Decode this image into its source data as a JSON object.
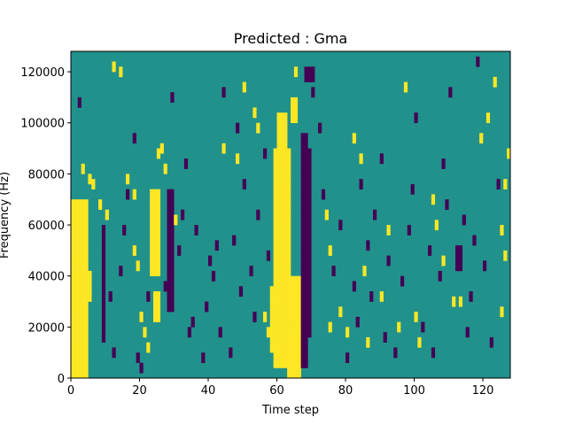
{
  "chart_data": {
    "type": "heatmap",
    "title": "Predicted : Gma",
    "xlabel": "Time step",
    "ylabel": "Frequency (Hz)",
    "xlim": [
      0,
      128
    ],
    "ylim": [
      0,
      128000
    ],
    "x_ticks": [
      0,
      20,
      40,
      60,
      80,
      100,
      120
    ],
    "x_tick_labels": [
      "0",
      "20",
      "40",
      "60",
      "80",
      "100",
      "120"
    ],
    "y_ticks": [
      0,
      20000,
      40000,
      60000,
      80000,
      100000,
      120000
    ],
    "y_tick_labels": [
      "0",
      "20000",
      "40000",
      "60000",
      "80000",
      "100000",
      "120000"
    ],
    "n_time_steps": 128,
    "n_freq_bins": 64,
    "colormap": "viridis",
    "levels": {
      "low": "#440154",
      "mid": "#21918c",
      "high": "#fde725"
    },
    "background_level": "mid",
    "high_regions": [
      {
        "t": [
          0,
          5
        ],
        "f": [
          0,
          70000
        ]
      },
      {
        "t": [
          1,
          4
        ],
        "f": [
          20000,
          50000
        ]
      },
      {
        "t": [
          3,
          6
        ],
        "f": [
          30000,
          42000
        ]
      },
      {
        "t": [
          23,
          26
        ],
        "f": [
          40000,
          74000
        ]
      },
      {
        "t": [
          24,
          26
        ],
        "f": [
          22000,
          34000
        ]
      },
      {
        "t": [
          59,
          64
        ],
        "f": [
          4000,
          90000
        ]
      },
      {
        "t": [
          58,
          65
        ],
        "f": [
          10000,
          36000
        ]
      },
      {
        "t": [
          60,
          63
        ],
        "f": [
          86000,
          104000
        ]
      },
      {
        "t": [
          63,
          67
        ],
        "f": [
          0,
          40000
        ]
      },
      {
        "t": [
          64,
          66
        ],
        "f": [
          100000,
          110000
        ]
      }
    ],
    "low_regions": [
      {
        "t": [
          28,
          30
        ],
        "f": [
          26000,
          74000
        ]
      },
      {
        "t": [
          67,
          69
        ],
        "f": [
          4000,
          96000
        ]
      },
      {
        "t": [
          68,
          70
        ],
        "f": [
          16000,
          90000
        ]
      },
      {
        "t": [
          68,
          71
        ],
        "f": [
          116000,
          122000
        ]
      },
      {
        "t": [
          112,
          114
        ],
        "f": [
          42000,
          52000
        ]
      },
      {
        "t": [
          9,
          10
        ],
        "f": [
          14000,
          60000
        ]
      },
      {
        "t": [
          69,
          70
        ],
        "f": [
          60000,
          80000
        ]
      }
    ],
    "high_points": [
      [
        3,
        80000
      ],
      [
        5,
        76000
      ],
      [
        6,
        74000
      ],
      [
        8,
        66000
      ],
      [
        10,
        62000
      ],
      [
        12,
        120000
      ],
      [
        14,
        118000
      ],
      [
        16,
        76000
      ],
      [
        18,
        70000
      ],
      [
        18,
        48000
      ],
      [
        19,
        42000
      ],
      [
        20,
        22000
      ],
      [
        21,
        16000
      ],
      [
        22,
        10000
      ],
      [
        25,
        86000
      ],
      [
        26,
        88000
      ],
      [
        27,
        80000
      ],
      [
        30,
        60000
      ],
      [
        44,
        88000
      ],
      [
        48,
        84000
      ],
      [
        50,
        112000
      ],
      [
        53,
        102000
      ],
      [
        54,
        96000
      ],
      [
        56,
        22000
      ],
      [
        57,
        16000
      ],
      [
        65,
        118000
      ],
      [
        74,
        62000
      ],
      [
        75,
        48000
      ],
      [
        75,
        18000
      ],
      [
        78,
        24000
      ],
      [
        80,
        16000
      ],
      [
        82,
        92000
      ],
      [
        84,
        84000
      ],
      [
        85,
        40000
      ],
      [
        86,
        12000
      ],
      [
        90,
        30000
      ],
      [
        92,
        56000
      ],
      [
        95,
        18000
      ],
      [
        97,
        112000
      ],
      [
        100,
        22000
      ],
      [
        105,
        68000
      ],
      [
        106,
        58000
      ],
      [
        108,
        44000
      ],
      [
        111,
        28000
      ],
      [
        113,
        28000
      ],
      [
        119,
        92000
      ],
      [
        121,
        100000
      ],
      [
        123,
        114000
      ],
      [
        125,
        56000
      ],
      [
        126,
        74000
      ],
      [
        127,
        86000
      ],
      [
        126,
        46000
      ],
      [
        125,
        24000
      ],
      [
        101,
        12000
      ]
    ],
    "low_points": [
      [
        2,
        106000
      ],
      [
        11,
        30000
      ],
      [
        12,
        8000
      ],
      [
        14,
        40000
      ],
      [
        15,
        56000
      ],
      [
        16,
        70000
      ],
      [
        18,
        92000
      ],
      [
        19,
        6000
      ],
      [
        20,
        2000
      ],
      [
        22,
        30000
      ],
      [
        27,
        34000
      ],
      [
        29,
        108000
      ],
      [
        31,
        48000
      ],
      [
        32,
        62000
      ],
      [
        33,
        82000
      ],
      [
        34,
        16000
      ],
      [
        35,
        20000
      ],
      [
        36,
        56000
      ],
      [
        38,
        6000
      ],
      [
        39,
        26000
      ],
      [
        40,
        44000
      ],
      [
        41,
        38000
      ],
      [
        42,
        50000
      ],
      [
        43,
        16000
      ],
      [
        44,
        110000
      ],
      [
        46,
        8000
      ],
      [
        47,
        52000
      ],
      [
        48,
        96000
      ],
      [
        49,
        32000
      ],
      [
        50,
        74000
      ],
      [
        52,
        40000
      ],
      [
        53,
        22000
      ],
      [
        54,
        62000
      ],
      [
        56,
        86000
      ],
      [
        57,
        46000
      ],
      [
        70,
        110000
      ],
      [
        72,
        96000
      ],
      [
        73,
        70000
      ],
      [
        76,
        40000
      ],
      [
        78,
        58000
      ],
      [
        80,
        6000
      ],
      [
        82,
        34000
      ],
      [
        83,
        20000
      ],
      [
        84,
        74000
      ],
      [
        86,
        50000
      ],
      [
        87,
        30000
      ],
      [
        88,
        62000
      ],
      [
        90,
        84000
      ],
      [
        91,
        14000
      ],
      [
        92,
        44000
      ],
      [
        94,
        8000
      ],
      [
        96,
        36000
      ],
      [
        98,
        56000
      ],
      [
        99,
        72000
      ],
      [
        100,
        100000
      ],
      [
        102,
        18000
      ],
      [
        104,
        48000
      ],
      [
        105,
        8000
      ],
      [
        107,
        38000
      ],
      [
        108,
        82000
      ],
      [
        109,
        66000
      ],
      [
        110,
        110000
      ],
      [
        114,
        60000
      ],
      [
        115,
        16000
      ],
      [
        116,
        30000
      ],
      [
        117,
        52000
      ],
      [
        118,
        122000
      ],
      [
        120,
        42000
      ],
      [
        122,
        12000
      ],
      [
        124,
        74000
      ]
    ]
  }
}
